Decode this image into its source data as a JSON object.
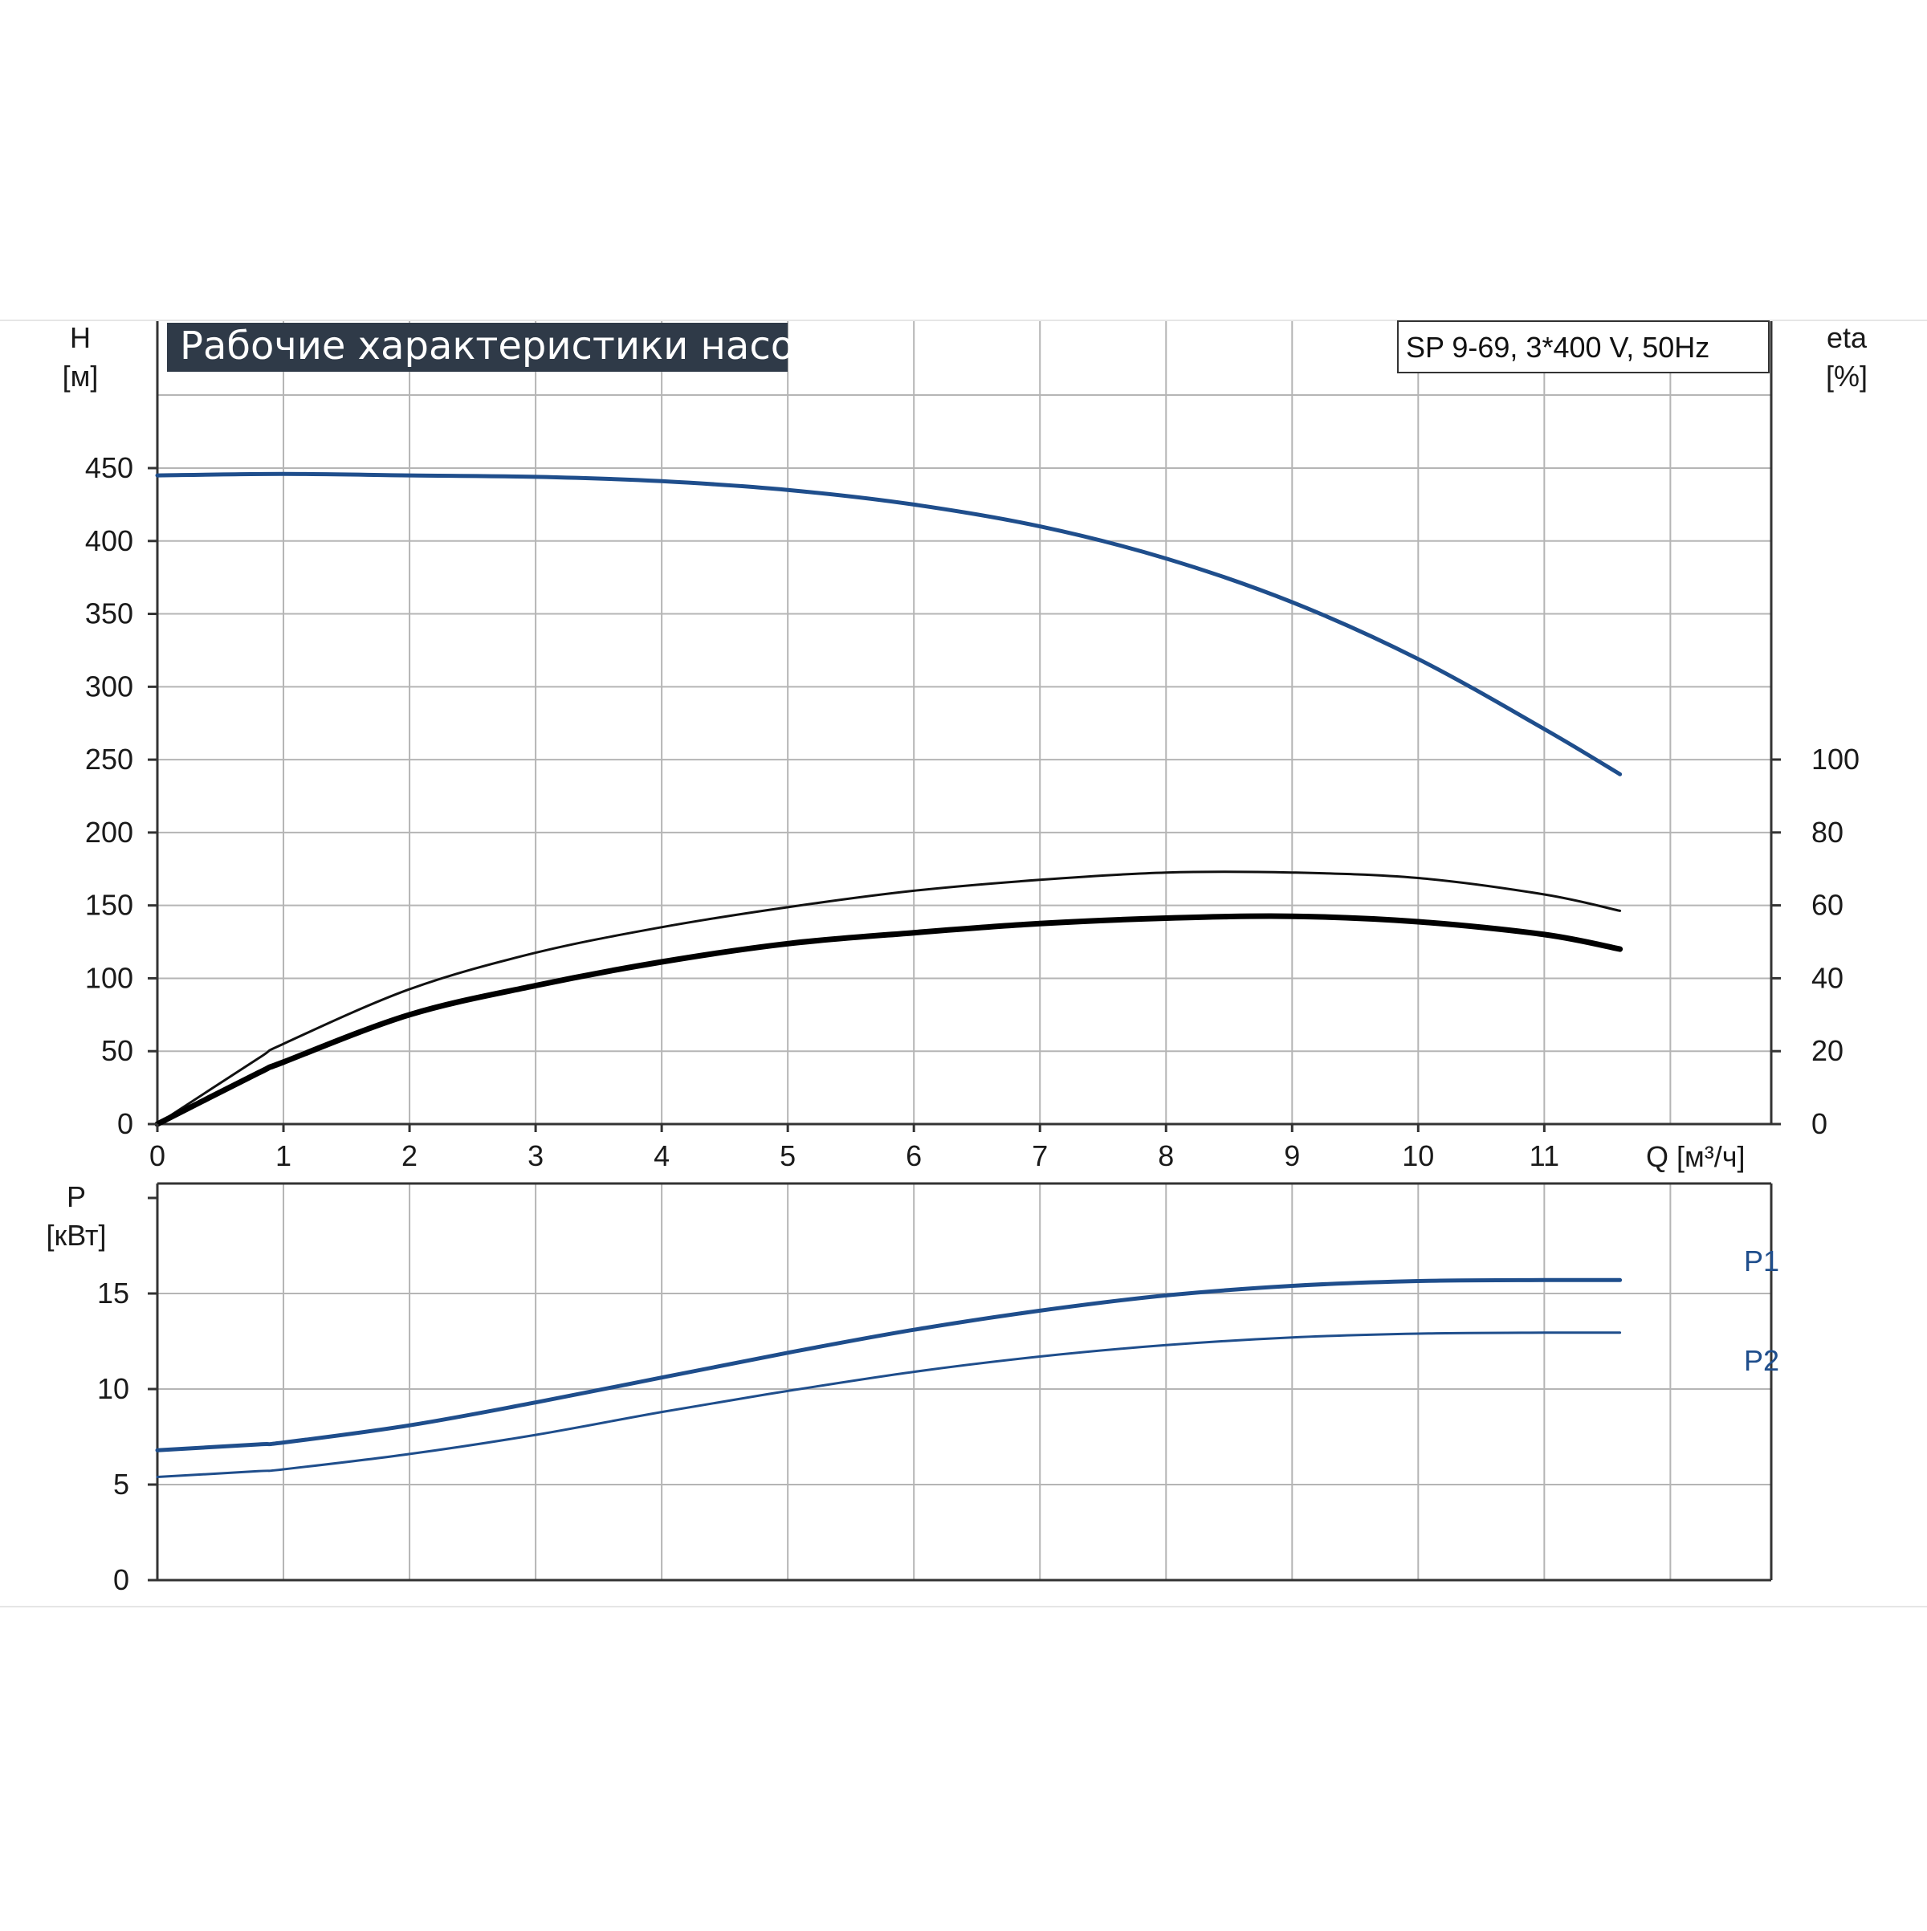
{
  "chart_data": [
    {
      "type": "line",
      "title": "Рабочие характеристики насоса",
      "subtitle": "SP 9-69, 3*400 V, 50Hz",
      "xlabel": "Q [м³/ч]",
      "xlim": [
        0,
        12.8
      ],
      "x_ticks": [
        0,
        1,
        2,
        3,
        4,
        5,
        6,
        7,
        8,
        9,
        10,
        11
      ],
      "ylabel_left": "H\n[м]",
      "ylabel_left_lines": [
        "H",
        "[м]"
      ],
      "ylim_left": [
        0,
        450
      ],
      "y_ticks_left": [
        0,
        50,
        100,
        150,
        200,
        250,
        300,
        350,
        400,
        450
      ],
      "ylabel_right": "eta\n[%]",
      "ylabel_right_lines": [
        "eta",
        "[%]"
      ],
      "ylim_right": [
        0,
        100
      ],
      "y_ticks_right": [
        0,
        20,
        40,
        60,
        80,
        100
      ],
      "grid": true,
      "series": [
        {
          "axis": "left",
          "color": "#1f4e8c",
          "stroke_width": 5,
          "x": [
            0,
            1,
            2,
            3,
            4,
            5,
            6,
            7,
            8,
            9,
            10,
            11,
            11.6
          ],
          "y": [
            445,
            446,
            445,
            444,
            441,
            435,
            425,
            410,
            388,
            358,
            319,
            271,
            240
          ]
        },
        {
          "axis": "right",
          "color": "#111111",
          "stroke_width": 3,
          "x": [
            0,
            0.8,
            1,
            2,
            3,
            4,
            5,
            6,
            7,
            8,
            9,
            10,
            11,
            11.6
          ],
          "y": [
            0,
            18,
            22,
            37,
            47,
            54,
            59.5,
            64,
            67,
            69,
            69,
            67.5,
            63,
            58.5
          ]
        },
        {
          "axis": "right",
          "color": "#000000",
          "stroke_width": 7,
          "x": [
            0,
            0.8,
            1,
            2,
            3,
            4,
            5,
            6,
            7,
            8,
            9,
            10,
            11,
            11.6
          ],
          "y": [
            0,
            14,
            17,
            30,
            38,
            44.5,
            49.5,
            52.5,
            55,
            56.5,
            57,
            55.5,
            52,
            48
          ]
        }
      ]
    },
    {
      "type": "line",
      "ylabel": "P\n[кВт]",
      "ylabel_lines": [
        "P",
        "[кВт]"
      ],
      "xlim": [
        0,
        12.8
      ],
      "ylim": [
        0,
        20
      ],
      "y_ticks": [
        0,
        5,
        10,
        15
      ],
      "grid": true,
      "series": [
        {
          "name": "P1",
          "color": "#1f4e8c",
          "stroke_width": 5,
          "x": [
            0,
            0.8,
            1,
            2,
            3,
            4,
            5,
            6,
            7,
            8,
            9,
            10,
            11,
            11.6
          ],
          "y": [
            6.8,
            7.1,
            7.2,
            8.1,
            9.3,
            10.6,
            11.9,
            13.1,
            14.1,
            14.9,
            15.4,
            15.65,
            15.7,
            15.7
          ]
        },
        {
          "name": "P2",
          "color": "#1f4e8c",
          "stroke_width": 3,
          "x": [
            0,
            0.8,
            1,
            2,
            3,
            4,
            5,
            6,
            7,
            8,
            9,
            10,
            11,
            11.6
          ],
          "y": [
            5.4,
            5.7,
            5.8,
            6.6,
            7.6,
            8.8,
            9.9,
            10.9,
            11.7,
            12.3,
            12.7,
            12.9,
            12.95,
            12.95
          ]
        }
      ]
    }
  ]
}
